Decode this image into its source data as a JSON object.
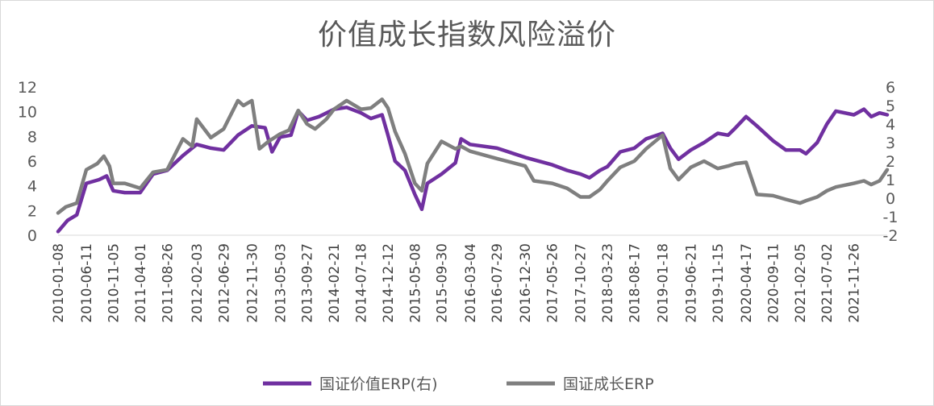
{
  "chart_data": {
    "type": "line",
    "title": "价值成长指数风险溢价",
    "xlabel": "",
    "ylabel": "",
    "ylim_left": [
      0,
      12
    ],
    "ylim_right": [
      -2,
      6
    ],
    "left_ticks": [
      "0",
      "2",
      "4",
      "6",
      "8",
      "10",
      "12"
    ],
    "right_ticks": [
      "-2",
      "-1",
      "0",
      "1",
      "2",
      "3",
      "4",
      "5",
      "6"
    ],
    "x_tick_labels": [
      "2010-01-08",
      "2010-06-11",
      "2010-11-05",
      "2011-04-01",
      "2011-08-26",
      "2012-02-03",
      "2012-06-29",
      "2012-11-30",
      "2013-05-03",
      "2013-09-27",
      "2014-02-21",
      "2014-07-18",
      "2014-12-12",
      "2015-05-08",
      "2015-09-30",
      "2016-03-04",
      "2016-07-29",
      "2016-12-30",
      "2017-05-26",
      "2017-10-27",
      "2018-03-23",
      "2018-08-17",
      "2019-01-18",
      "2019-06-21",
      "2019-11-15",
      "2020-04-17",
      "2020-09-11",
      "2021-02-05",
      "2021-07-02",
      "2021-11-26"
    ],
    "legend_position": "bottom",
    "series": [
      {
        "name": "国证价值ERP(右)",
        "axis": "right",
        "color": "#7030a0",
        "points": [
          [
            "2010-01-08",
            -1.8
          ],
          [
            "2010-03-01",
            -1.2
          ],
          [
            "2010-04-20",
            -0.9
          ],
          [
            "2010-06-11",
            0.8
          ],
          [
            "2010-08-20",
            1.0
          ],
          [
            "2010-09-30",
            1.2
          ],
          [
            "2010-11-05",
            0.4
          ],
          [
            "2011-01-07",
            0.3
          ],
          [
            "2011-04-01",
            0.3
          ],
          [
            "2011-06-10",
            1.3
          ],
          [
            "2011-08-26",
            1.5
          ],
          [
            "2011-11-20",
            2.3
          ],
          [
            "2012-02-03",
            2.9
          ],
          [
            "2012-04-20",
            2.7
          ],
          [
            "2012-06-29",
            2.6
          ],
          [
            "2012-09-15",
            3.4
          ],
          [
            "2012-11-30",
            3.9
          ],
          [
            "2013-02-10",
            3.8
          ],
          [
            "2013-03-20",
            2.5
          ],
          [
            "2013-05-03",
            3.3
          ],
          [
            "2013-07-01",
            3.4
          ],
          [
            "2013-08-10",
            4.7
          ],
          [
            "2013-09-27",
            4.2
          ],
          [
            "2013-12-01",
            4.4
          ],
          [
            "2014-02-21",
            4.8
          ],
          [
            "2014-05-01",
            4.9
          ],
          [
            "2014-07-18",
            4.6
          ],
          [
            "2014-09-10",
            4.3
          ],
          [
            "2014-11-10",
            4.5
          ],
          [
            "2014-12-12",
            3.4
          ],
          [
            "2015-01-20",
            2.0
          ],
          [
            "2015-03-15",
            1.5
          ],
          [
            "2015-05-08",
            0.2
          ],
          [
            "2015-06-15",
            -0.6
          ],
          [
            "2015-07-15",
            0.8
          ],
          [
            "2015-09-30",
            1.3
          ],
          [
            "2015-12-15",
            1.9
          ],
          [
            "2016-01-15",
            3.2
          ],
          [
            "2016-03-04",
            2.9
          ],
          [
            "2016-07-29",
            2.7
          ],
          [
            "2016-12-30",
            2.2
          ],
          [
            "2017-05-26",
            1.8
          ],
          [
            "2017-08-15",
            1.5
          ],
          [
            "2017-10-27",
            1.3
          ],
          [
            "2017-12-15",
            1.1
          ],
          [
            "2018-02-10",
            1.5
          ],
          [
            "2018-03-23",
            1.7
          ],
          [
            "2018-06-01",
            2.5
          ],
          [
            "2018-08-17",
            2.7
          ],
          [
            "2018-10-20",
            3.2
          ],
          [
            "2019-01-18",
            3.5
          ],
          [
            "2019-03-01",
            2.7
          ],
          [
            "2019-04-15",
            2.1
          ],
          [
            "2019-06-21",
            2.6
          ],
          [
            "2019-09-01",
            3.0
          ],
          [
            "2019-11-15",
            3.5
          ],
          [
            "2020-01-10",
            3.4
          ],
          [
            "2020-02-20",
            3.8
          ],
          [
            "2020-04-17",
            4.4
          ],
          [
            "2020-06-15",
            3.9
          ],
          [
            "2020-09-11",
            3.1
          ],
          [
            "2020-11-20",
            2.6
          ],
          [
            "2021-02-05",
            2.6
          ],
          [
            "2021-03-10",
            2.4
          ],
          [
            "2021-05-10",
            3.0
          ],
          [
            "2021-07-02",
            4.0
          ],
          [
            "2021-08-20",
            4.7
          ],
          [
            "2021-11-26",
            4.5
          ],
          [
            "2022-01-20",
            4.8
          ],
          [
            "2022-03-01",
            4.4
          ],
          [
            "2022-04-15",
            4.6
          ],
          [
            "2022-05-27",
            4.5
          ]
        ]
      },
      {
        "name": "国证成长ERP",
        "axis": "left",
        "color": "#7f7f7f",
        "points": [
          [
            "2010-01-08",
            1.8
          ],
          [
            "2010-02-20",
            2.3
          ],
          [
            "2010-04-20",
            2.6
          ],
          [
            "2010-06-11",
            5.3
          ],
          [
            "2010-08-10",
            5.8
          ],
          [
            "2010-09-15",
            6.4
          ],
          [
            "2010-10-15",
            5.6
          ],
          [
            "2010-11-05",
            4.2
          ],
          [
            "2011-01-07",
            4.2
          ],
          [
            "2011-04-01",
            3.8
          ],
          [
            "2011-06-10",
            5.1
          ],
          [
            "2011-08-26",
            5.3
          ],
          [
            "2011-11-20",
            7.8
          ],
          [
            "2012-01-10",
            7.2
          ],
          [
            "2012-02-03",
            9.4
          ],
          [
            "2012-03-15",
            8.6
          ],
          [
            "2012-04-20",
            7.9
          ],
          [
            "2012-06-29",
            8.6
          ],
          [
            "2012-09-15",
            10.9
          ],
          [
            "2012-10-15",
            10.5
          ],
          [
            "2012-11-30",
            10.9
          ],
          [
            "2013-01-10",
            7.0
          ],
          [
            "2013-03-01",
            7.6
          ],
          [
            "2013-05-03",
            8.2
          ],
          [
            "2013-06-20",
            8.5
          ],
          [
            "2013-08-10",
            10.1
          ],
          [
            "2013-09-27",
            9.0
          ],
          [
            "2013-11-10",
            8.6
          ],
          [
            "2014-01-10",
            9.4
          ],
          [
            "2014-02-21",
            10.2
          ],
          [
            "2014-05-01",
            10.9
          ],
          [
            "2014-07-18",
            10.2
          ],
          [
            "2014-09-10",
            10.3
          ],
          [
            "2014-11-10",
            11.0
          ],
          [
            "2014-12-12",
            10.3
          ],
          [
            "2015-01-20",
            8.4
          ],
          [
            "2015-03-15",
            6.6
          ],
          [
            "2015-05-08",
            4.2
          ],
          [
            "2015-06-15",
            3.6
          ],
          [
            "2015-07-15",
            5.8
          ],
          [
            "2015-09-30",
            7.6
          ],
          [
            "2015-12-15",
            7.0
          ],
          [
            "2016-01-15",
            7.2
          ],
          [
            "2016-03-04",
            6.8
          ],
          [
            "2016-07-29",
            6.2
          ],
          [
            "2016-12-30",
            5.6
          ],
          [
            "2017-02-15",
            4.4
          ],
          [
            "2017-05-26",
            4.2
          ],
          [
            "2017-08-15",
            3.8
          ],
          [
            "2017-10-27",
            3.1
          ],
          [
            "2017-12-15",
            3.1
          ],
          [
            "2018-02-10",
            3.7
          ],
          [
            "2018-03-23",
            4.4
          ],
          [
            "2018-06-01",
            5.5
          ],
          [
            "2018-08-17",
            6.0
          ],
          [
            "2018-10-20",
            7.0
          ],
          [
            "2019-01-18",
            8.1
          ],
          [
            "2019-03-01",
            5.4
          ],
          [
            "2019-04-15",
            4.5
          ],
          [
            "2019-06-21",
            5.5
          ],
          [
            "2019-09-01",
            6.0
          ],
          [
            "2019-11-15",
            5.4
          ],
          [
            "2020-01-10",
            5.6
          ],
          [
            "2020-02-20",
            5.8
          ],
          [
            "2020-04-17",
            5.9
          ],
          [
            "2020-06-15",
            3.3
          ],
          [
            "2020-09-11",
            3.2
          ],
          [
            "2020-11-20",
            2.9
          ],
          [
            "2021-02-05",
            2.6
          ],
          [
            "2021-03-10",
            2.8
          ],
          [
            "2021-05-10",
            3.1
          ],
          [
            "2021-07-02",
            3.6
          ],
          [
            "2021-08-20",
            3.9
          ],
          [
            "2021-11-26",
            4.2
          ],
          [
            "2022-01-20",
            4.4
          ],
          [
            "2022-03-01",
            4.1
          ],
          [
            "2022-04-15",
            4.4
          ],
          [
            "2022-05-27",
            5.3
          ]
        ]
      }
    ]
  }
}
